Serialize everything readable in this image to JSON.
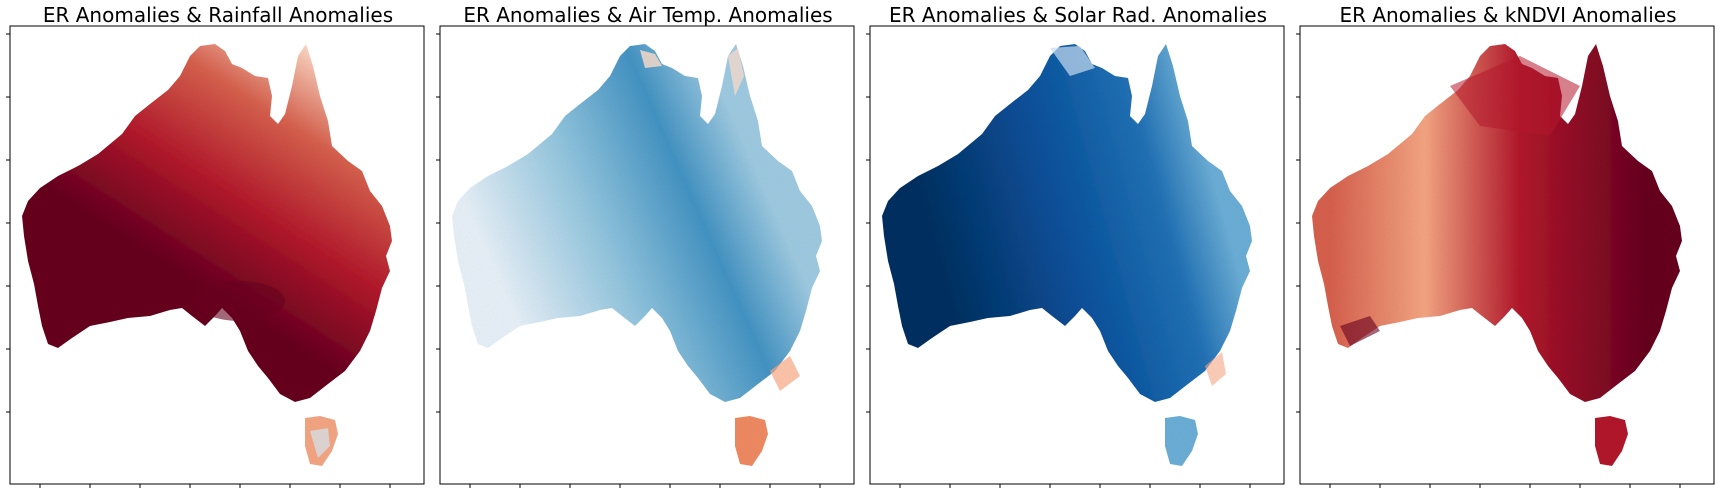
{
  "panels": [
    {
      "title": "ER Anomalies & Rainfall Anomalies",
      "colormap": "RdBu",
      "colors": {
        "low": "#67001f",
        "mid": "#d6604d",
        "high": "#fddbc7"
      }
    },
    {
      "title": "ER Anomalies & Air Temp. Anomalies",
      "colormap": "RdBu",
      "colors": {
        "low": "#dbe9f6",
        "mid": "#6baed6",
        "high": "#2171b5"
      }
    },
    {
      "title": "ER Anomalies & Solar Rad. Anomalies",
      "colormap": "RdBu",
      "colors": {
        "low": "#08306b",
        "mid": "#08519c",
        "high": "#6baed6"
      }
    },
    {
      "title": "ER Anomalies & kNDVI Anomalies",
      "colormap": "RdBu",
      "colors": {
        "low": "#fddbc7",
        "mid": "#d6604d",
        "high": "#67001f"
      }
    }
  ]
}
